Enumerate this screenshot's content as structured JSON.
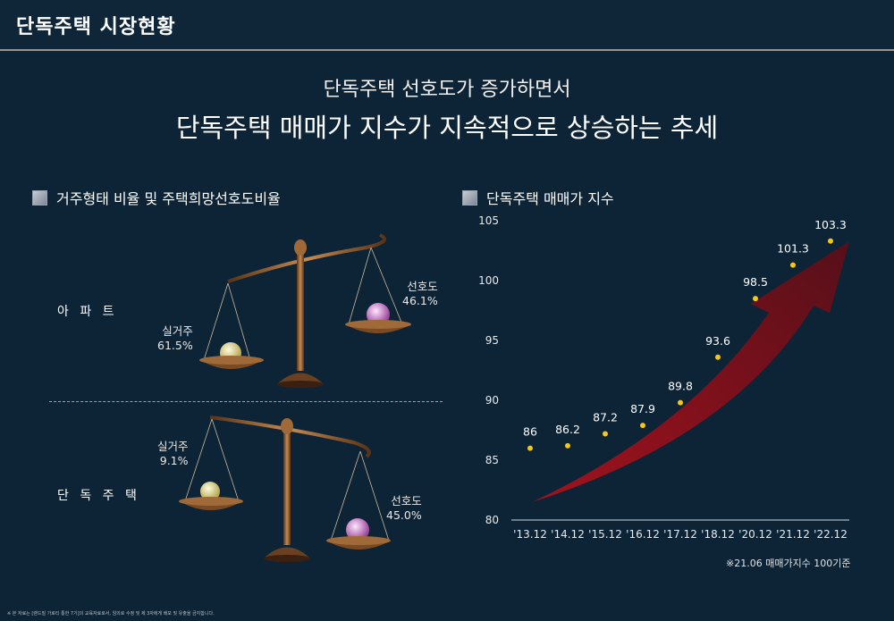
{
  "header": {
    "title": "단독주택 시장현황"
  },
  "headline": {
    "line1": "단독주택 선호도가 증가하면서",
    "line2": "단독주택 매매가 지수가 지속적으로 상승하는 추세"
  },
  "left_section": {
    "title": "거주형태 비율 및 주택희망선호도비율",
    "rows": [
      {
        "label": "아 파 트",
        "left_name": "실거주",
        "left_value": "61.5%",
        "right_name": "선호도",
        "right_value": "46.1%"
      },
      {
        "label": "단 독 주 택",
        "left_name": "실거주",
        "left_value": "9.1%",
        "right_name": "선호도",
        "right_value": "45.0%"
      }
    ]
  },
  "right_section": {
    "title": "단독주택 매매가 지수"
  },
  "chart_data": {
    "type": "scatter",
    "categories": [
      "'13.12",
      "'14.12",
      "'15.12",
      "'16.12",
      "'17.12",
      "'18.12",
      "'20.12",
      "'21.12",
      "'22.12"
    ],
    "values": [
      86,
      86.2,
      87.2,
      87.9,
      89.8,
      93.6,
      98.5,
      101.3,
      103.3
    ],
    "value_labels": [
      "86",
      "86.2",
      "87.2",
      "87.9",
      "89.8",
      "93.6",
      "98.5",
      "101.3",
      "103.3"
    ],
    "yticks": [
      "80",
      "85",
      "90",
      "95",
      "100",
      "105"
    ],
    "ylim": [
      80,
      105
    ],
    "grid": false,
    "point_color": "#f5c518",
    "arrow_color": "#8b1020",
    "note": "※21.06 매매가지수 100기준"
  },
  "footer": {
    "disclaimer": "※ 본 자료는 [랜드빌 가로티 통한 7기]의 교육자료로서, 임의로 수정 및 제 3자에게 배포 및 유출을 금지합니다."
  }
}
